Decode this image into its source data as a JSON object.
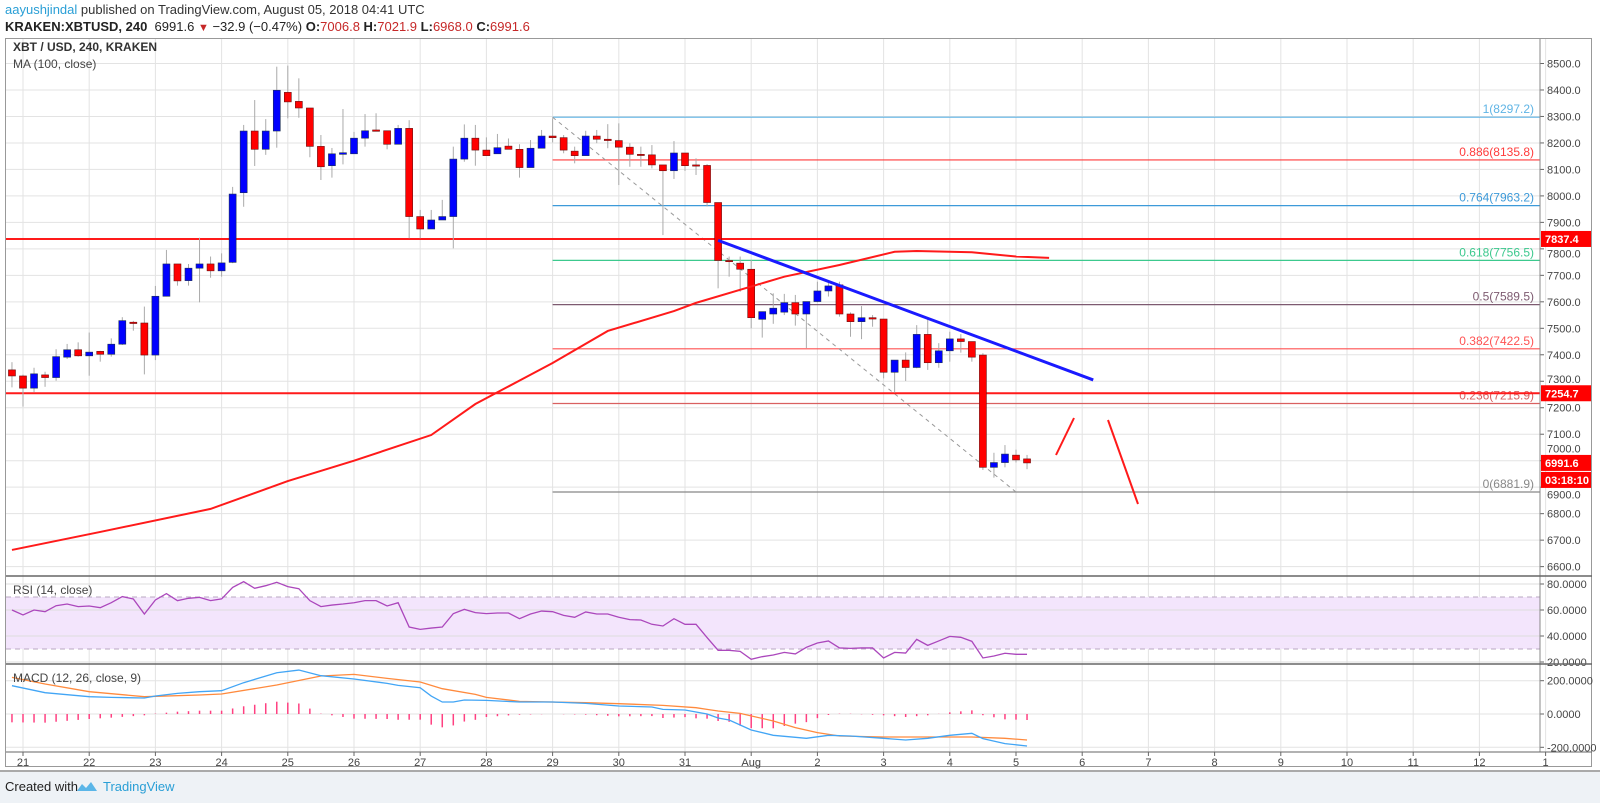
{
  "header": {
    "author": "aayushjindal",
    "published": "published on TradingView.com, August 05, 2018 04:41 UTC",
    "symbol": "KRAKEN:XBTUSD, 240",
    "last": "6991.6",
    "direction_icon": "triangle-down-icon",
    "change": "−32.9 (−0.47%)",
    "o_label": "O:",
    "o": "7006.8",
    "h_label": "H:",
    "h": "7021.9",
    "l_label": "L:",
    "l": "6968.0",
    "c_label": "C:",
    "c": "6991.6"
  },
  "legend": {
    "main": "XBT / USD, 240, KRAKEN",
    "ma": "MA (100, close)",
    "rsi": "RSI (14, close)",
    "macd": "MACD (12, 26, close, 9)"
  },
  "footer": {
    "created_with": "Created with",
    "brand": "TradingView"
  },
  "colors": {
    "up": "#0000ff",
    "down": "#ff0000",
    "ma": "#ff1a1a",
    "trendline": "#1a1aff",
    "rsi": "#ab47bc",
    "rsi_band": "#f3e5fc",
    "macd": "#42a5f5",
    "signal": "#ff8a3d",
    "hist": "#ff4081",
    "level_line": "#ff1a1a",
    "link": "#2a9fd6"
  },
  "chart_data": {
    "type": "candlestick",
    "title": "XBT / USD, 240, KRAKEN",
    "interval_minutes": 240,
    "price_axis": {
      "range": [
        6550,
        8560
      ],
      "ticks": [
        "6600.0",
        "6700.0",
        "6800.0",
        "6900.0",
        "7000.0",
        "7100.0",
        "7200.0",
        "7300.0",
        "7400.0",
        "7500.0",
        "7600.0",
        "7700.0",
        "7800.0",
        "7900.0",
        "8000.0",
        "8100.0",
        "8200.0",
        "8300.0",
        "8400.0",
        "8500.0"
      ]
    },
    "x_axis": {
      "labels": [
        "21",
        "22",
        "23",
        "24",
        "25",
        "26",
        "27",
        "28",
        "29",
        "30",
        "31",
        "Aug",
        "2",
        "3",
        "4",
        "5",
        "6",
        "7",
        "8",
        "9",
        "10",
        "11",
        "12",
        "1"
      ]
    },
    "grid": true,
    "candles_fields": [
      "time",
      "open",
      "high",
      "low",
      "close"
    ],
    "candles": [
      [
        "07-20 20:00",
        7343,
        7372,
        7277,
        7320
      ],
      [
        "07-21 00:00",
        7320,
        7325,
        7204,
        7274
      ],
      [
        "07-21 04:00",
        7274,
        7351,
        7259,
        7328
      ],
      [
        "07-21 08:00",
        7324,
        7336,
        7279,
        7314
      ],
      [
        "07-21 12:00",
        7314,
        7421,
        7302,
        7393
      ],
      [
        "07-21 16:00",
        7391,
        7441,
        7384,
        7419
      ],
      [
        "07-21 20:00",
        7419,
        7447,
        7393,
        7396
      ],
      [
        "07-22 00:00",
        7396,
        7484,
        7321,
        7410
      ],
      [
        "07-22 04:00",
        7413,
        7415,
        7374,
        7402
      ],
      [
        "07-22 08:00",
        7402,
        7462,
        7393,
        7440
      ],
      [
        "07-22 12:00",
        7440,
        7542,
        7437,
        7529
      ],
      [
        "07-22 16:00",
        7523,
        7528,
        7491,
        7518
      ],
      [
        "07-22 20:00",
        7520,
        7582,
        7326,
        7399
      ],
      [
        "07-23 00:00",
        7399,
        7660,
        7380,
        7621
      ],
      [
        "07-23 04:00",
        7621,
        7796,
        7620,
        7743
      ],
      [
        "07-23 08:00",
        7743,
        7743,
        7661,
        7679
      ],
      [
        "07-23 12:00",
        7680,
        7743,
        7661,
        7727
      ],
      [
        "07-23 16:00",
        7727,
        7842,
        7598,
        7743
      ],
      [
        "07-23 20:00",
        7743,
        7771,
        7691,
        7717
      ],
      [
        "07-24 00:00",
        7717,
        7783,
        7695,
        7747
      ],
      [
        "07-24 04:00",
        7749,
        8034,
        7746,
        8007
      ],
      [
        "07-24 08:00",
        8012,
        8268,
        7959,
        8245
      ],
      [
        "07-24 12:00",
        8245,
        8362,
        8113,
        8176
      ],
      [
        "07-24 16:00",
        8176,
        8290,
        8155,
        8245
      ],
      [
        "07-24 20:00",
        8245,
        8488,
        8182,
        8399
      ],
      [
        "07-25 00:00",
        8391,
        8492,
        8293,
        8355
      ],
      [
        "07-25 04:00",
        8357,
        8444,
        8295,
        8332
      ],
      [
        "07-25 08:00",
        8332,
        8332,
        8146,
        8187
      ],
      [
        "07-25 12:00",
        8187,
        8230,
        8060,
        8110
      ],
      [
        "07-25 16:00",
        8114,
        8181,
        8069,
        8159
      ],
      [
        "07-25 20:00",
        8157,
        8328,
        8119,
        8163
      ],
      [
        "07-26 00:00",
        8159,
        8242,
        8159,
        8218
      ],
      [
        "07-26 04:00",
        8218,
        8309,
        8186,
        8246
      ],
      [
        "07-26 08:00",
        8249,
        8312,
        8244,
        8244
      ],
      [
        "07-26 12:00",
        8246,
        8246,
        8176,
        8195
      ],
      [
        "07-26 16:00",
        8195,
        8268,
        8195,
        8255
      ],
      [
        "07-26 20:00",
        8255,
        8286,
        7840,
        7922
      ],
      [
        "07-27 00:00",
        7922,
        7947,
        7840,
        7875
      ],
      [
        "07-27 04:00",
        7875,
        7947,
        7875,
        7909
      ],
      [
        "07-27 08:00",
        7909,
        7985,
        7909,
        7922
      ],
      [
        "07-27 12:00",
        7922,
        8186,
        7802,
        8139
      ],
      [
        "07-27 16:00",
        8139,
        8270,
        8129,
        8218
      ],
      [
        "07-27 20:00",
        8218,
        8268,
        8114,
        8173
      ],
      [
        "07-28 00:00",
        8173,
        8221,
        8152,
        8152
      ],
      [
        "07-28 04:00",
        8159,
        8234,
        8159,
        8182
      ],
      [
        "07-28 08:00",
        8188,
        8217,
        8176,
        8176
      ],
      [
        "07-28 12:00",
        8176,
        8195,
        8069,
        8107
      ],
      [
        "07-28 16:00",
        8107,
        8211,
        8107,
        8180
      ],
      [
        "07-28 20:00",
        8180,
        8249,
        8180,
        8226
      ],
      [
        "07-29 00:00",
        8226,
        8293,
        8202,
        8220
      ],
      [
        "07-29 04:00",
        8220,
        8230,
        8161,
        8173
      ],
      [
        "07-29 08:00",
        8169,
        8186,
        8123,
        8152
      ],
      [
        "07-29 12:00",
        8152,
        8246,
        8152,
        8226
      ],
      [
        "07-29 16:00",
        8226,
        8249,
        8199,
        8214
      ],
      [
        "07-29 20:00",
        8214,
        8271,
        8180,
        8209
      ],
      [
        "07-30 00:00",
        8209,
        8274,
        8041,
        8184
      ],
      [
        "07-30 04:00",
        8184,
        8199,
        8110,
        8157
      ],
      [
        "07-30 08:00",
        8157,
        8186,
        8110,
        8155
      ],
      [
        "07-30 12:00",
        8155,
        8192,
        8104,
        8117
      ],
      [
        "07-30 16:00",
        8117,
        8117,
        7852,
        8095
      ],
      [
        "07-30 20:00",
        8095,
        8207,
        8064,
        8162
      ],
      [
        "07-31 00:00",
        8162,
        8162,
        8094,
        8114
      ],
      [
        "07-31 04:00",
        8117,
        8142,
        8079,
        8115
      ],
      [
        "07-31 08:00",
        8115,
        8120,
        7960,
        7975
      ],
      [
        "07-31 12:00",
        7975,
        7975,
        7651,
        7756
      ],
      [
        "07-31 16:00",
        7756,
        7771,
        7695,
        7752
      ],
      [
        "07-31 20:00",
        7746,
        7771,
        7638,
        7723
      ],
      [
        "08-01 00:00",
        7723,
        7758,
        7500,
        7540
      ],
      [
        "08-01 04:00",
        7534,
        7563,
        7465,
        7563
      ],
      [
        "08-01 08:00",
        7554,
        7632,
        7517,
        7576
      ],
      [
        "08-01 12:00",
        7561,
        7630,
        7550,
        7597
      ],
      [
        "08-01 16:00",
        7597,
        7626,
        7510,
        7554
      ],
      [
        "08-01 20:00",
        7554,
        7601,
        7425,
        7601
      ],
      [
        "08-02 00:00",
        7601,
        7676,
        7598,
        7641
      ],
      [
        "08-02 04:00",
        7641,
        7676,
        7620,
        7660
      ],
      [
        "08-02 08:00",
        7664,
        7676,
        7544,
        7554
      ],
      [
        "08-02 12:00",
        7554,
        7560,
        7468,
        7525
      ],
      [
        "08-02 16:00",
        7525,
        7584,
        7459,
        7540
      ],
      [
        "08-02 20:00",
        7540,
        7550,
        7506,
        7535
      ],
      [
        "08-03 00:00",
        7535,
        7535,
        7311,
        7334
      ],
      [
        "08-03 04:00",
        7334,
        7380,
        7257,
        7380
      ],
      [
        "08-03 08:00",
        7380,
        7409,
        7301,
        7352
      ],
      [
        "08-03 12:00",
        7352,
        7512,
        7349,
        7477
      ],
      [
        "08-03 16:00",
        7477,
        7534,
        7343,
        7370
      ],
      [
        "08-03 20:00",
        7370,
        7444,
        7351,
        7415
      ],
      [
        "08-04 00:00",
        7415,
        7487,
        7374,
        7460
      ],
      [
        "08-04 04:00",
        7460,
        7478,
        7408,
        7450
      ],
      [
        "08-04 08:00",
        7450,
        7450,
        7374,
        7391
      ],
      [
        "08-04 12:00",
        7399,
        7406,
        6965,
        6975
      ],
      [
        "08-04 16:00",
        6975,
        7030,
        6936,
        6993
      ],
      [
        "08-04 20:00",
        6993,
        7059,
        6975,
        7025
      ],
      [
        "08-05 00:00",
        7021,
        7042,
        6993,
        7003
      ],
      [
        "08-05 04:00",
        7006.8,
        7021.9,
        6968.0,
        6991.6
      ]
    ],
    "ma100": [
      [
        "07-20 20:00",
        6663
      ],
      [
        "07-22 04:00",
        6731
      ],
      [
        "07-23 20:00",
        6818
      ],
      [
        "07-25 00:00",
        6923
      ],
      [
        "07-26 00:00",
        7000
      ],
      [
        "07-27 04:00",
        7097
      ],
      [
        "07-27 20:00",
        7214
      ],
      [
        "07-29 00:00",
        7369
      ],
      [
        "07-29 20:00",
        7490
      ],
      [
        "07-30 20:00",
        7565
      ],
      [
        "07-31 04:00",
        7596
      ],
      [
        "08-01 12:00",
        7695
      ],
      [
        "08-02 08:00",
        7739
      ],
      [
        "08-03 04:00",
        7789
      ],
      [
        "08-03 12:00",
        7792
      ],
      [
        "08-04 08:00",
        7787
      ],
      [
        "08-05 00:00",
        7771
      ],
      [
        "08-05 12:00",
        7766
      ]
    ],
    "horizontal_levels": [
      {
        "price": 7837.4,
        "label": "7837.4"
      },
      {
        "price": 7254.7,
        "label": "7254.7"
      }
    ],
    "fib_retracement": {
      "start": "07-29 00:00",
      "levels": [
        {
          "label": "1(8297.2)",
          "price": 8297.2,
          "color": "#5fb4e5"
        },
        {
          "label": "0.886(8135.8)",
          "price": 8135.8,
          "color": "#ff3b3b"
        },
        {
          "label": "0.764(7963.2)",
          "price": 7963.2,
          "color": "#3d9ad9"
        },
        {
          "label": "0.618(7756.5)",
          "price": 7756.5,
          "color": "#3cc98e"
        },
        {
          "label": "0.5(7589.5)",
          "price": 7589.5,
          "color": "#7d5a70"
        },
        {
          "label": "0.382(7422.5)",
          "price": 7422.5,
          "color": "#ff5252"
        },
        {
          "label": "0.236(7215.9)",
          "price": 7215.9,
          "color": "#d96060"
        },
        {
          "label": "0(6881.9)",
          "price": 6881.9,
          "color": "#888888"
        }
      ],
      "diagonal": [
        [
          "07-29 00:00",
          8297.2
        ],
        [
          "08-05 00:00",
          6881.9
        ]
      ]
    },
    "trendline": [
      [
        "07-31 12:00",
        7832
      ],
      [
        "08-06 04:00",
        7305
      ]
    ],
    "current_price": {
      "label": "6991.6",
      "price": 6991.6,
      "countdown": "03:18:10"
    },
    "rsi": {
      "ticks": [
        "80.0000",
        "60.0000",
        "40.0000",
        "20.0000"
      ],
      "overbought": 70,
      "oversold": 30,
      "values": [
        60.0,
        56.2,
        60.0,
        58.7,
        63.3,
        64.6,
        62.6,
        63.1,
        61.8,
        65.6,
        70.3,
        68.5,
        56.9,
        67.7,
        72.6,
        67.2,
        69.0,
        69.7,
        67.2,
        68.5,
        77.4,
        81.8,
        76.7,
        78.7,
        81.3,
        78.0,
        76.4,
        67.2,
        62.6,
        63.8,
        64.6,
        65.6,
        67.2,
        67.2,
        63.1,
        65.6,
        46.9,
        45.1,
        46.1,
        46.9,
        57.2,
        60.5,
        58.0,
        57.2,
        57.7,
        57.7,
        53.3,
        56.9,
        59.2,
        58.7,
        55.9,
        54.4,
        58.5,
        56.9,
        56.9,
        54.4,
        52.6,
        52.3,
        49.0,
        47.7,
        53.3,
        49.0,
        49.0,
        38.8,
        29.0,
        29.0,
        28.2,
        22.1,
        24.1,
        25.4,
        27.4,
        26.2,
        31.3,
        34.6,
        36.2,
        30.8,
        30.5,
        30.8,
        30.8,
        23.1,
        27.4,
        26.9,
        37.4,
        32.8,
        36.2,
        39.7,
        39.0,
        35.9,
        23.1,
        24.6,
        26.7,
        25.9,
        25.9
      ]
    },
    "macd": {
      "ticks": [
        "200.0000",
        "0.0000",
        "-200.0000"
      ],
      "macd_line": [
        [
          "07-20 20:00",
          170
        ],
        [
          "07-21 08:00",
          128
        ],
        [
          "07-22 00:00",
          104
        ],
        [
          "07-22 08:00",
          100
        ],
        [
          "07-22 20:00",
          96
        ],
        [
          "07-23 00:00",
          108
        ],
        [
          "07-23 08:00",
          124
        ],
        [
          "07-23 16:00",
          134
        ],
        [
          "07-24 00:00",
          140
        ],
        [
          "07-24 08:00",
          188
        ],
        [
          "07-24 20:00",
          248
        ],
        [
          "07-25 04:00",
          264
        ],
        [
          "07-25 12:00",
          230
        ],
        [
          "07-26 00:00",
          210
        ],
        [
          "07-26 12:00",
          184
        ],
        [
          "07-26 16:00",
          172
        ],
        [
          "07-27 00:00",
          158
        ],
        [
          "07-27 04:00",
          108
        ],
        [
          "07-27 08:00",
          72
        ],
        [
          "07-27 12:00",
          72
        ],
        [
          "07-27 16:00",
          84
        ],
        [
          "07-28 00:00",
          82
        ],
        [
          "07-28 12:00",
          72
        ],
        [
          "07-29 00:00",
          72
        ],
        [
          "07-29 12:00",
          64
        ],
        [
          "07-30 00:00",
          48
        ],
        [
          "07-30 12:00",
          42
        ],
        [
          "07-30 16:00",
          28
        ],
        [
          "07-31 00:00",
          24
        ],
        [
          "07-31 08:00",
          0
        ],
        [
          "07-31 12:00",
          -24
        ],
        [
          "07-31 16:00",
          -36
        ],
        [
          "08-01 00:00",
          -96
        ],
        [
          "08-01 08:00",
          -128
        ],
        [
          "08-01 20:00",
          -146
        ],
        [
          "08-02 04:00",
          -128
        ],
        [
          "08-02 12:00",
          -132
        ],
        [
          "08-03 00:00",
          -146
        ],
        [
          "08-03 08:00",
          -156
        ],
        [
          "08-03 16:00",
          -146
        ],
        [
          "08-04 00:00",
          -128
        ],
        [
          "08-04 08:00",
          -116
        ],
        [
          "08-04 12:00",
          -148
        ],
        [
          "08-04 20:00",
          -178
        ],
        [
          "08-05 04:00",
          -192
        ]
      ],
      "signal_line": [
        [
          "07-20 20:00",
          220
        ],
        [
          "07-21 08:00",
          180
        ],
        [
          "07-22 00:00",
          134
        ],
        [
          "07-22 20:00",
          104
        ],
        [
          "07-23 16:00",
          114
        ],
        [
          "07-24 00:00",
          120
        ],
        [
          "07-24 20:00",
          174
        ],
        [
          "07-25 12:00",
          228
        ],
        [
          "07-26 00:00",
          238
        ],
        [
          "07-26 12:00",
          214
        ],
        [
          "07-27 00:00",
          192
        ],
        [
          "07-27 08:00",
          152
        ],
        [
          "07-27 20:00",
          118
        ],
        [
          "07-28 00:00",
          100
        ],
        [
          "07-28 12:00",
          76
        ],
        [
          "07-29 12:00",
          68
        ],
        [
          "07-30 00:00",
          62
        ],
        [
          "07-30 16:00",
          52
        ],
        [
          "07-31 04:00",
          38
        ],
        [
          "07-31 08:00",
          28
        ],
        [
          "07-31 12:00",
          18
        ],
        [
          "07-31 20:00",
          4
        ],
        [
          "08-01 08:00",
          -42
        ],
        [
          "08-01 16:00",
          -82
        ],
        [
          "08-02 00:00",
          -112
        ],
        [
          "08-02 08:00",
          -132
        ],
        [
          "08-03 00:00",
          -138
        ],
        [
          "08-04 08:00",
          -138
        ],
        [
          "08-04 20:00",
          -146
        ],
        [
          "08-05 04:00",
          -156
        ]
      ]
    }
  }
}
